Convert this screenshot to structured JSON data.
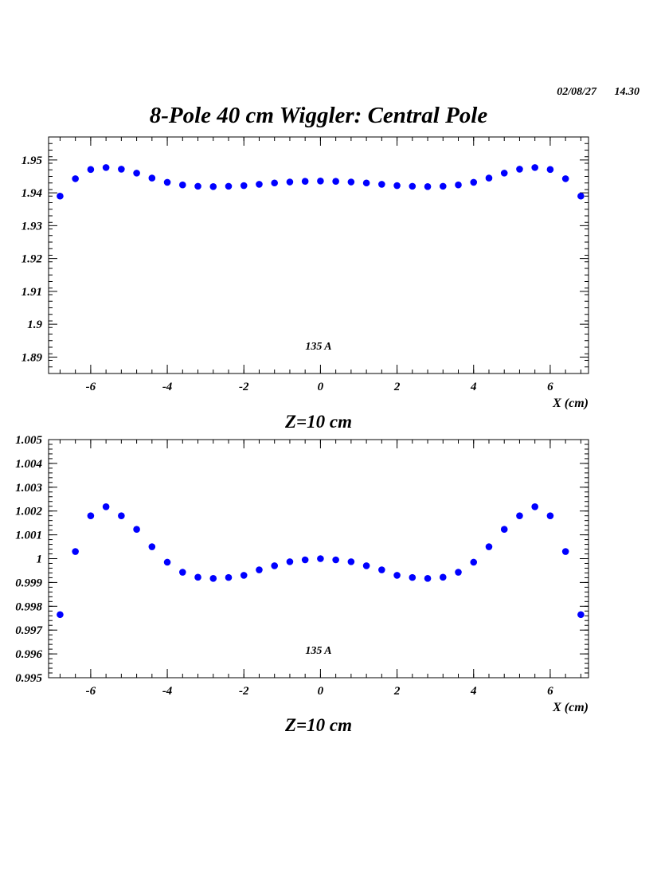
{
  "header": {
    "date": "02/08/27",
    "time": "14.30",
    "title": "8-Pole 40 cm Wiggler: Central Pole"
  },
  "chart_data": [
    {
      "type": "scatter",
      "annotation": "135 A",
      "xlabel": "X (cm)",
      "caption": "Z=10 cm",
      "xlim": [
        -7.1,
        7.0
      ],
      "ylim": [
        1.885,
        1.957
      ],
      "x_ticks": [
        -6,
        -4,
        -2,
        0,
        2,
        4,
        6
      ],
      "x_tick_labels": [
        "-6",
        "-4",
        "-2",
        "0",
        "2",
        "4",
        "6"
      ],
      "y_ticks": [
        1.89,
        1.9,
        1.91,
        1.92,
        1.93,
        1.94,
        1.95
      ],
      "y_tick_labels": [
        "1.89",
        "1.9",
        "1.91",
        "1.92",
        "1.93",
        "1.94",
        "1.95"
      ],
      "marker_color": "#0000ff",
      "x": [
        -6.8,
        -6.4,
        -6.0,
        -5.6,
        -5.2,
        -4.8,
        -4.4,
        -4.0,
        -3.6,
        -3.2,
        -2.8,
        -2.4,
        -2.0,
        -1.6,
        -1.2,
        -0.8,
        -0.4,
        0.0,
        0.4,
        0.8,
        1.2,
        1.6,
        2.0,
        2.4,
        2.8,
        3.2,
        3.6,
        4.0,
        4.4,
        4.8,
        5.2,
        5.6,
        6.0,
        6.4,
        6.8
      ],
      "y": [
        1.939,
        1.9443,
        1.9471,
        1.9477,
        1.9472,
        1.946,
        1.9445,
        1.9432,
        1.9424,
        1.942,
        1.9419,
        1.942,
        1.9422,
        1.9426,
        1.943,
        1.9433,
        1.9435,
        1.9436,
        1.9435,
        1.9433,
        1.943,
        1.9426,
        1.9422,
        1.942,
        1.9419,
        1.942,
        1.9424,
        1.9432,
        1.9445,
        1.946,
        1.9472,
        1.9477,
        1.9471,
        1.9443,
        1.939
      ]
    },
    {
      "type": "scatter",
      "annotation": "135 A",
      "xlabel": "X (cm)",
      "caption": "Z=10 cm",
      "xlim": [
        -7.1,
        7.0
      ],
      "ylim": [
        0.995,
        1.005
      ],
      "x_ticks": [
        -6,
        -4,
        -2,
        0,
        2,
        4,
        6
      ],
      "x_tick_labels": [
        "-6",
        "-4",
        "-2",
        "0",
        "2",
        "4",
        "6"
      ],
      "y_ticks": [
        0.995,
        0.996,
        0.997,
        0.998,
        0.999,
        1.0,
        1.001,
        1.002,
        1.003,
        1.004,
        1.005
      ],
      "y_tick_labels": [
        "0.995",
        "0.996",
        "0.997",
        "0.998",
        "0.999",
        "1",
        "1.001",
        "1.002",
        "1.003",
        "1.004",
        "1.005"
      ],
      "marker_color": "#0000ff",
      "x": [
        -6.8,
        -6.4,
        -6.0,
        -5.6,
        -5.2,
        -4.8,
        -4.4,
        -4.0,
        -3.6,
        -3.2,
        -2.8,
        -2.4,
        -2.0,
        -1.6,
        -1.2,
        -0.8,
        -0.4,
        0.0,
        0.4,
        0.8,
        1.2,
        1.6,
        2.0,
        2.4,
        2.8,
        3.2,
        3.6,
        4.0,
        4.4,
        4.8,
        5.2,
        5.6,
        6.0,
        6.4,
        6.8
      ],
      "y": [
        0.99765,
        1.0003,
        1.0018,
        1.00218,
        1.0018,
        1.00123,
        1.0005,
        0.99985,
        0.99943,
        0.99922,
        0.99917,
        0.99921,
        0.9993,
        0.99953,
        0.9997,
        0.99987,
        0.99995,
        1.0,
        0.99995,
        0.99987,
        0.9997,
        0.99953,
        0.9993,
        0.99921,
        0.99917,
        0.99922,
        0.99943,
        0.99985,
        1.0005,
        1.00123,
        1.0018,
        1.00218,
        1.0018,
        1.0003,
        0.99765
      ]
    }
  ]
}
